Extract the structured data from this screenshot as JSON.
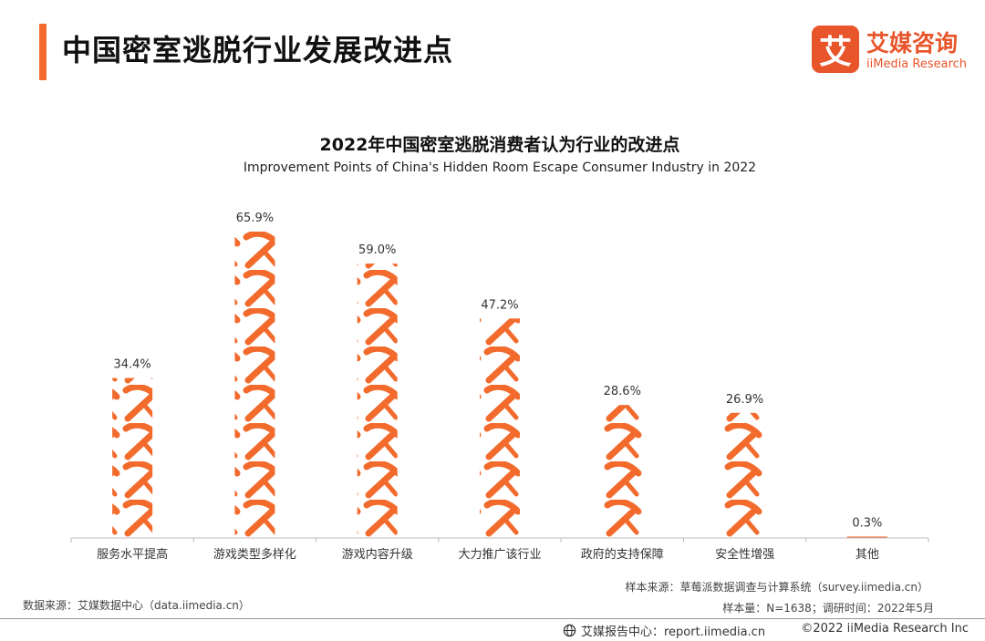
{
  "header": {
    "title": "中国密室逃脱行业发展改进点",
    "logo_mark": "艾",
    "logo_cn": "艾媒咨询",
    "logo_en": "iiMedia Research"
  },
  "chart_data": {
    "type": "bar",
    "title": "2022年中国密室逃脱消费者认为行业的改进点",
    "subtitle": "Improvement Points of China's Hidden Room Escape Consumer Industry in 2022",
    "categories": [
      "服务水平提高",
      "游戏类型多样化",
      "游戏内容升级",
      "大力推广该行业",
      "政府的支持保障",
      "安全性增强",
      "其他"
    ],
    "values": [
      34.4,
      65.9,
      59.0,
      47.2,
      28.6,
      26.9,
      0.3
    ],
    "value_labels": [
      "34.4%",
      "65.9%",
      "59.0%",
      "47.2%",
      "28.6%",
      "26.9%",
      "0.3%"
    ],
    "unit": "%",
    "ylim": [
      0,
      70
    ],
    "bar_color": "#f26b2d",
    "bar_icon": "pickaxe-icon",
    "grid": false,
    "legend": "none"
  },
  "footer": {
    "sample_source": "样本来源：草莓派数据调查与计算系统（survey.iimedia.cn）",
    "sample_size": "样本量：N=1638；调研时间：2022年5月",
    "data_source": "数据来源：艾媒数据中心（data.iimedia.cn）",
    "report_center": "艾媒报告中心：report.iimedia.cn",
    "copyright": "©2022  iiMedia Research  Inc"
  }
}
